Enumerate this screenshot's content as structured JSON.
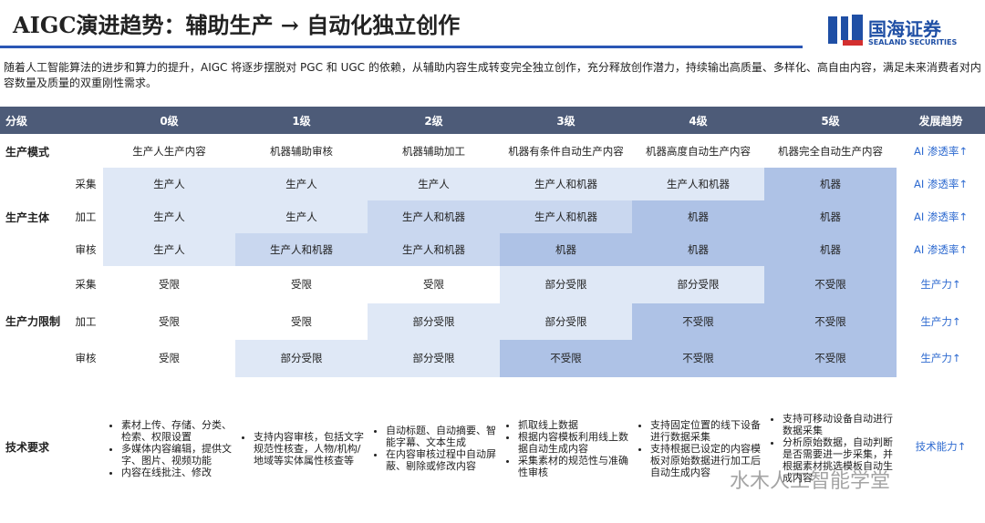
{
  "header": {
    "title": "AIGC演进趋势：辅助生产 → 自动化独立创作",
    "logo": {
      "name": "国海证券",
      "subtitle": "SEALAND SECURITIES"
    }
  },
  "intro": "随着人工智能算法的进步和算力的提升，AIGC 将逐步摆脱对 PGC 和 UGC 的依赖，从辅助内容生成转变完全独立创作，充分释放创作潜力，持续输出高质量、多样化、高自由内容，满足未来消费者对内容数量及质量的双重刚性需求。",
  "table": {
    "header": [
      "分级",
      "0级",
      "1级",
      "2级",
      "3级",
      "4级",
      "5级",
      "发展趋势"
    ],
    "mode": {
      "label": "生产模式",
      "cells": [
        "生产人生产内容",
        "机器辅助审核",
        "机器辅助加工",
        "机器有条件自动生产内容",
        "机器高度自动生产内容",
        "机器完全自动生产内容"
      ],
      "trend": "AI 渗透率↑"
    },
    "subject": {
      "label": "生产主体",
      "rows": [
        {
          "sub": "采集",
          "cells": [
            "生产人",
            "生产人",
            "生产人",
            "生产人和机器",
            "生产人和机器",
            "机器"
          ],
          "trend": "AI 渗透率↑"
        },
        {
          "sub": "加工",
          "cells": [
            "生产人",
            "生产人",
            "生产人和机器",
            "生产人和机器",
            "机器",
            "机器"
          ],
          "trend": "AI 渗透率↑"
        },
        {
          "sub": "审核",
          "cells": [
            "生产人",
            "生产人和机器",
            "生产人和机器",
            "机器",
            "机器",
            "机器"
          ],
          "trend": "AI 渗透率↑"
        }
      ]
    },
    "limit": {
      "label": "生产力限制",
      "rows": [
        {
          "sub": "采集",
          "cells": [
            "受限",
            "受限",
            "受限",
            "部分受限",
            "部分受限",
            "不受限"
          ],
          "trend": "生产力↑"
        },
        {
          "sub": "加工",
          "cells": [
            "受限",
            "受限",
            "部分受限",
            "部分受限",
            "不受限",
            "不受限"
          ],
          "trend": "生产力↑"
        },
        {
          "sub": "审核",
          "cells": [
            "受限",
            "部分受限",
            "部分受限",
            "不受限",
            "不受限",
            "不受限"
          ],
          "trend": "生产力↑"
        }
      ]
    },
    "tech": {
      "label": "技术要求",
      "items": [
        [
          "素材上传、存储、分类、检索、权限设置",
          "多媒体内容编辑，提供文字、图片、视频功能",
          "内容在线批注、修改"
        ],
        [
          "支持内容审核，包括文字规范性核查，人物/机构/地域等实体属性核查等"
        ],
        [
          "自动标题、自动摘要、智能字幕、文本生成",
          "在内容审核过程中自动屏蔽、剔除或修改内容"
        ],
        [
          "抓取线上数据",
          "根据内容模板利用线上数据自动生成内容",
          "采集素材的规范性与准确性审核"
        ],
        [
          "支持固定位置的线下设备进行数据采集",
          "支持根据已设定的内容模板对原始数据进行加工后自动生成内容"
        ],
        [
          "支持可移动设备自动进行数据采集",
          "分析原始数据，自动判断是否需要进一步采集，并根据素材挑选模板自动生成内容"
        ]
      ],
      "trend": "技术能力↑"
    }
  },
  "watermark": "水木人工智能学堂"
}
